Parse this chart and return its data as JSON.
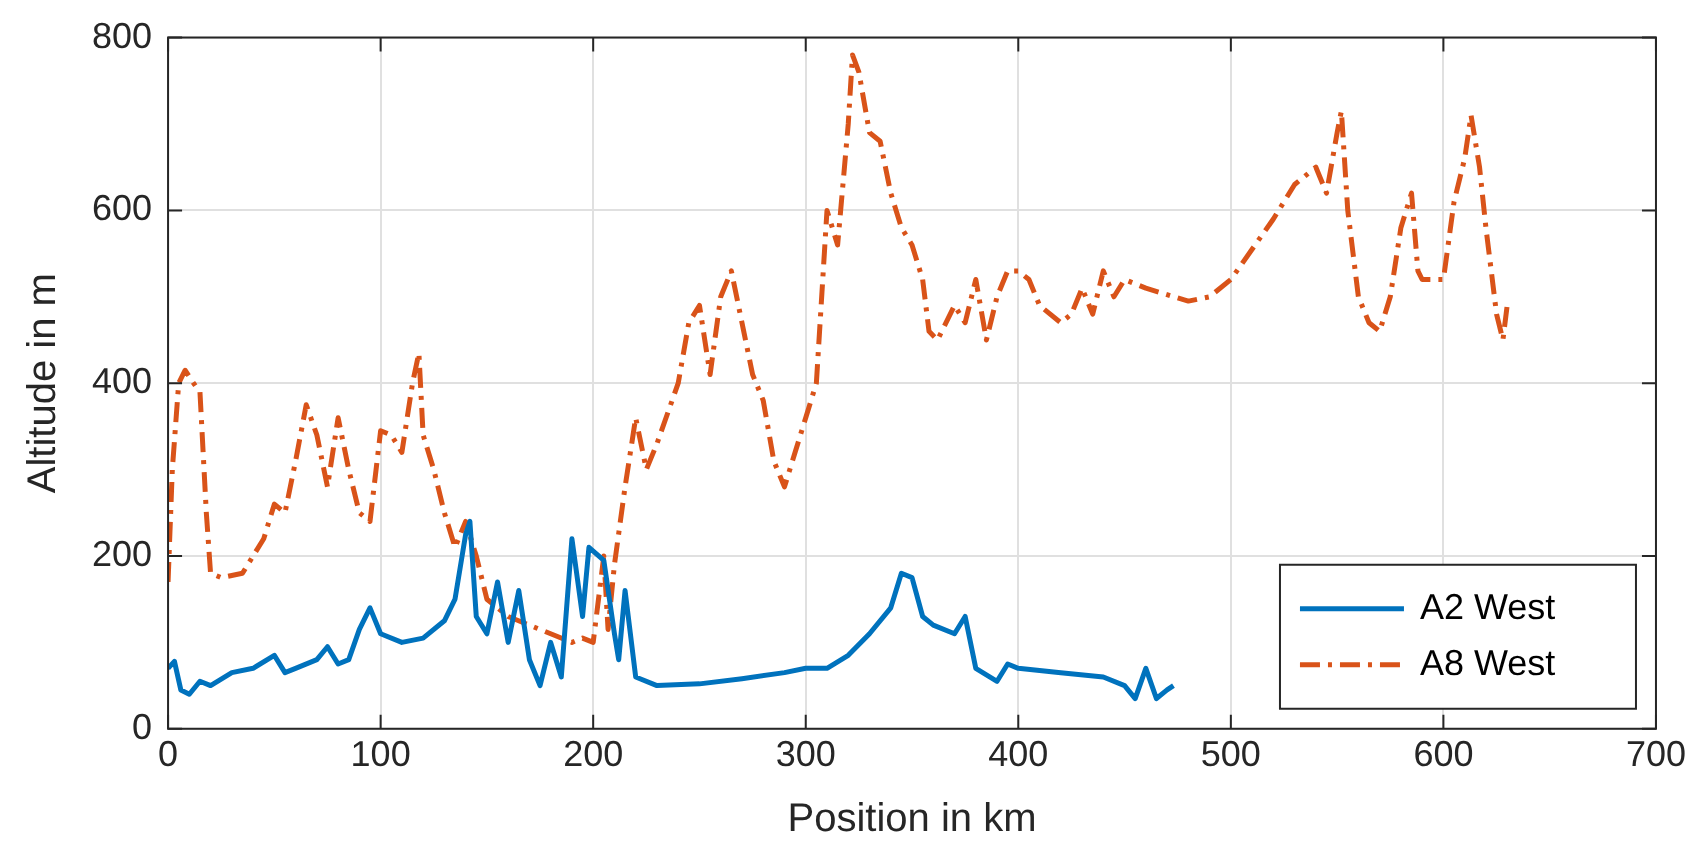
{
  "chart_data": {
    "type": "line",
    "xlabel": "Position in km",
    "ylabel": "Altitude in m",
    "xlim": [
      0,
      700
    ],
    "xticks": [
      0,
      100,
      200,
      300,
      400,
      500,
      600,
      700
    ],
    "ylim": [
      0,
      800
    ],
    "yticks": [
      0,
      200,
      400,
      600,
      800
    ],
    "grid": true,
    "legend": "bottom right",
    "marker": "none",
    "series": [
      {
        "name": "A2 West",
        "color": "#0072bd",
        "line_style": "solid",
        "x": [
          0,
          3,
          6,
          10,
          15,
          20,
          30,
          40,
          50,
          55,
          60,
          70,
          75,
          80,
          85,
          90,
          95,
          100,
          110,
          120,
          130,
          135,
          140,
          142,
          145,
          150,
          155,
          160,
          165,
          170,
          175,
          180,
          185,
          190,
          195,
          198,
          205,
          210,
          212,
          215,
          220,
          230,
          250,
          270,
          290,
          300,
          310,
          320,
          330,
          340,
          345,
          350,
          355,
          360,
          370,
          375,
          380,
          390,
          395,
          400,
          420,
          440,
          450,
          455,
          460,
          465,
          470,
          473
        ],
        "values": [
          70,
          78,
          45,
          40,
          55,
          50,
          65,
          70,
          85,
          65,
          70,
          80,
          95,
          75,
          80,
          115,
          140,
          110,
          100,
          105,
          125,
          150,
          225,
          240,
          130,
          110,
          170,
          100,
          160,
          80,
          50,
          100,
          60,
          220,
          130,
          210,
          195,
          110,
          80,
          160,
          60,
          50,
          52,
          58,
          65,
          70,
          70,
          85,
          110,
          140,
          180,
          175,
          130,
          120,
          110,
          130,
          70,
          55,
          75,
          70,
          65,
          60,
          50,
          35,
          70,
          35,
          45,
          50
        ]
      },
      {
        "name": "A8 West",
        "color": "#d95319",
        "line_style": "dashed",
        "x": [
          0,
          2,
          5,
          8,
          12,
          15,
          18,
          20,
          25,
          35,
          45,
          50,
          55,
          60,
          65,
          70,
          75,
          80,
          85,
          90,
          95,
          100,
          105,
          110,
          115,
          118,
          120,
          125,
          130,
          135,
          140,
          145,
          150,
          160,
          170,
          180,
          190,
          195,
          200,
          205,
          207,
          210,
          215,
          220,
          225,
          230,
          240,
          245,
          250,
          255,
          260,
          265,
          270,
          275,
          280,
          285,
          290,
          295,
          300,
          305,
          310,
          315,
          320,
          322,
          325,
          330,
          335,
          340,
          345,
          350,
          355,
          358,
          362,
          370,
          375,
          380,
          385,
          390,
          395,
          400,
          405,
          410,
          420,
          425,
          430,
          435,
          440,
          445,
          450,
          460,
          480,
          490,
          500,
          510,
          520,
          530,
          540,
          545,
          550,
          552,
          555,
          560,
          565,
          570,
          575,
          580,
          585,
          588,
          590,
          600,
          605,
          610,
          613,
          617,
          620,
          625,
          628,
          630
        ],
        "values": [
          170,
          300,
          400,
          415,
          400,
          390,
          250,
          180,
          175,
          180,
          220,
          260,
          250,
          310,
          375,
          340,
          280,
          360,
          300,
          250,
          240,
          345,
          340,
          320,
          400,
          435,
          340,
          300,
          250,
          210,
          240,
          200,
          150,
          130,
          120,
          110,
          100,
          105,
          100,
          200,
          115,
          190,
          280,
          360,
          300,
          330,
          400,
          470,
          490,
          410,
          500,
          530,
          470,
          410,
          380,
          310,
          280,
          320,
          360,
          400,
          600,
          560,
          700,
          780,
          760,
          690,
          680,
          620,
          580,
          560,
          520,
          460,
          450,
          490,
          470,
          520,
          450,
          500,
          530,
          530,
          520,
          490,
          470,
          480,
          510,
          480,
          530,
          500,
          520,
          510,
          495,
          500,
          520,
          555,
          590,
          630,
          650,
          620,
          690,
          715,
          600,
          500,
          470,
          460,
          500,
          580,
          620,
          530,
          520,
          520,
          610,
          660,
          710,
          650,
          580,
          480,
          450,
          490
        ]
      }
    ]
  }
}
